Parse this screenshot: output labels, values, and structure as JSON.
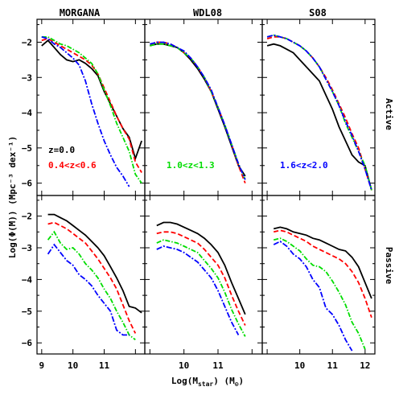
{
  "chart_data": {
    "type": "line",
    "columns": [
      "MORGANA",
      "WDL08",
      "S08"
    ],
    "rows": [
      "Active",
      "Passive"
    ],
    "xlabel": "Log(M",
    "xlabel_sub": "star",
    "xlabel_unit": ") (M",
    "xlabel_unit_sub": "⊙",
    "xlabel_close": ")",
    "ylabel": "Log(Φ(M)) (Mpc⁻³ dex⁻¹)",
    "xlim": [
      8.85,
      12.3
    ],
    "ylim": [
      -6.35,
      -1.35
    ],
    "xticks": [
      9,
      10,
      11,
      12
    ],
    "yticks": [
      -2,
      -3,
      -4,
      -5,
      -6
    ],
    "legend": [
      {
        "text": "z=0.0",
        "color": "#000000",
        "panel": 0
      },
      {
        "text": "0.4<z<0.6",
        "color": "#ff0000",
        "panel": 0
      },
      {
        "text": "1.0<z<1.3",
        "color": "#00dd00",
        "panel": 1
      },
      {
        "text": "1.6<z<2.0",
        "color": "#0000ff",
        "panel": 2
      }
    ],
    "series_styles": [
      {
        "key": "z0",
        "color": "#000000",
        "dash": ""
      },
      {
        "key": "z05",
        "color": "#ff0000",
        "dash": "6,3"
      },
      {
        "key": "z12",
        "color": "#00dd00",
        "dash": "6,2,1.5,2"
      },
      {
        "key": "z18",
        "color": "#0000ff",
        "dash": "7,2,2,2"
      }
    ],
    "panels": [
      {
        "col": 0,
        "row": 0,
        "series": {
          "z0": {
            "x": [
              9.0,
              9.2,
              9.4,
              9.6,
              9.8,
              10.0,
              10.2,
              10.4,
              10.6,
              10.8,
              11.0,
              11.2,
              11.4,
              11.6,
              11.8,
              12.0,
              12.2
            ],
            "y": [
              -2.1,
              -1.95,
              -2.15,
              -2.35,
              -2.5,
              -2.55,
              -2.5,
              -2.6,
              -2.75,
              -2.95,
              -3.4,
              -3.75,
              -4.1,
              -4.45,
              -4.7,
              -5.3,
              -4.8
            ]
          },
          "z05": {
            "x": [
              9.0,
              9.2,
              9.4,
              9.6,
              9.8,
              10.0,
              10.2,
              10.4,
              10.6,
              10.8,
              11.0,
              11.2,
              11.4,
              11.6,
              11.8,
              12.0,
              12.2
            ],
            "y": [
              -1.95,
              -1.9,
              -2.0,
              -2.1,
              -2.2,
              -2.3,
              -2.4,
              -2.5,
              -2.65,
              -2.9,
              -3.3,
              -3.7,
              -4.1,
              -4.45,
              -4.75,
              -5.4,
              -5.7
            ]
          },
          "z12": {
            "x": [
              9.0,
              9.2,
              9.4,
              9.6,
              9.8,
              10.0,
              10.2,
              10.4,
              10.6,
              10.8,
              11.0,
              11.2,
              11.4,
              11.6,
              11.8,
              12.0,
              12.2
            ],
            "y": [
              -1.85,
              -1.85,
              -1.95,
              -2.05,
              -2.1,
              -2.2,
              -2.3,
              -2.45,
              -2.6,
              -2.9,
              -3.35,
              -3.8,
              -4.3,
              -4.7,
              -5.1,
              -5.75,
              -6.0
            ]
          },
          "z18": {
            "x": [
              9.0,
              9.2,
              9.4,
              9.6,
              9.8,
              10.0,
              10.2,
              10.4,
              10.6,
              10.8,
              11.0,
              11.2,
              11.4,
              11.6,
              11.8
            ],
            "y": [
              -1.85,
              -1.9,
              -2.05,
              -2.15,
              -2.3,
              -2.45,
              -2.65,
              -3.1,
              -3.75,
              -4.3,
              -4.8,
              -5.2,
              -5.55,
              -5.8,
              -6.1
            ]
          }
        }
      },
      {
        "col": 1,
        "row": 0,
        "series": {
          "z0": {
            "x": [
              9.0,
              9.2,
              9.4,
              9.6,
              9.8,
              10.0,
              10.2,
              10.4,
              10.6,
              10.8,
              11.0,
              11.2,
              11.4,
              11.6,
              11.8
            ],
            "y": [
              -2.1,
              -2.05,
              -2.05,
              -2.1,
              -2.15,
              -2.3,
              -2.5,
              -2.75,
              -3.05,
              -3.4,
              -3.9,
              -4.4,
              -4.95,
              -5.5,
              -5.8
            ]
          },
          "z05": {
            "x": [
              9.0,
              9.2,
              9.4,
              9.6,
              9.8,
              10.0,
              10.2,
              10.4,
              10.6,
              10.8,
              11.0,
              11.2,
              11.4,
              11.6,
              11.8
            ],
            "y": [
              -2.1,
              -2.0,
              -2.0,
              -2.05,
              -2.15,
              -2.3,
              -2.45,
              -2.7,
              -3.0,
              -3.4,
              -3.85,
              -4.35,
              -4.9,
              -5.5,
              -6.0
            ]
          },
          "z12": {
            "x": [
              9.0,
              9.2,
              9.4,
              9.6,
              9.8,
              10.0,
              10.2,
              10.4,
              10.6,
              10.8,
              11.0,
              11.2,
              11.4,
              11.6,
              11.8
            ],
            "y": [
              -2.1,
              -2.05,
              -2.05,
              -2.1,
              -2.15,
              -2.3,
              -2.45,
              -2.7,
              -3.0,
              -3.4,
              -3.85,
              -4.35,
              -4.9,
              -5.45,
              -5.9
            ]
          },
          "z18": {
            "x": [
              9.0,
              9.2,
              9.4,
              9.6,
              9.8,
              10.0,
              10.2,
              10.4,
              10.6,
              10.8,
              11.0,
              11.2,
              11.4,
              11.6,
              11.8
            ],
            "y": [
              -2.05,
              -2.0,
              -2.0,
              -2.05,
              -2.15,
              -2.25,
              -2.45,
              -2.7,
              -3.0,
              -3.35,
              -3.85,
              -4.35,
              -4.9,
              -5.45,
              -5.9
            ]
          }
        }
      },
      {
        "col": 2,
        "row": 0,
        "series": {
          "z0": {
            "x": [
              9.0,
              9.2,
              9.4,
              9.6,
              9.8,
              10.0,
              10.2,
              10.4,
              10.6,
              10.8,
              11.0,
              11.2,
              11.4,
              11.6,
              11.8,
              12.0,
              12.2
            ],
            "y": [
              -2.1,
              -2.05,
              -2.1,
              -2.2,
              -2.3,
              -2.5,
              -2.7,
              -2.9,
              -3.1,
              -3.5,
              -3.9,
              -4.4,
              -4.8,
              -5.2,
              -5.4,
              -5.5,
              -6.2
            ]
          },
          "z05": {
            "x": [
              9.0,
              9.2,
              9.4,
              9.6,
              9.8,
              10.0,
              10.2,
              10.4,
              10.6,
              10.8,
              11.0,
              11.2,
              11.4,
              11.6,
              11.8,
              12.0,
              12.2
            ],
            "y": [
              -1.9,
              -1.85,
              -1.85,
              -1.9,
              -2.0,
              -2.1,
              -2.25,
              -2.45,
              -2.7,
              -3.0,
              -3.35,
              -3.75,
              -4.15,
              -4.6,
              -5.0,
              -5.6,
              -6.2
            ]
          },
          "z12": {
            "x": [
              9.0,
              9.2,
              9.4,
              9.6,
              9.8,
              10.0,
              10.2,
              10.4,
              10.6,
              10.8,
              11.0,
              11.2,
              11.4,
              11.6,
              11.8,
              12.0,
              12.2
            ],
            "y": [
              -1.85,
              -1.8,
              -1.85,
              -1.9,
              -2.0,
              -2.1,
              -2.25,
              -2.45,
              -2.7,
              -3.05,
              -3.4,
              -3.8,
              -4.3,
              -4.7,
              -5.1,
              -5.5,
              -6.2
            ]
          },
          "z18": {
            "x": [
              9.0,
              9.2,
              9.4,
              9.6,
              9.8,
              10.0,
              10.2,
              10.4,
              10.6,
              10.8,
              11.0,
              11.2,
              11.4,
              11.6,
              11.8,
              12.0,
              12.2
            ],
            "y": [
              -1.85,
              -1.8,
              -1.85,
              -1.9,
              -2.0,
              -2.1,
              -2.25,
              -2.45,
              -2.7,
              -3.05,
              -3.4,
              -3.8,
              -4.25,
              -4.65,
              -5.1,
              -5.6,
              -6.2
            ]
          }
        }
      },
      {
        "col": 0,
        "row": 1,
        "series": {
          "z0": {
            "x": [
              9.2,
              9.4,
              9.6,
              9.8,
              10.0,
              10.2,
              10.4,
              10.6,
              10.8,
              11.0,
              11.2,
              11.4,
              11.6,
              11.8,
              12.0,
              12.2
            ],
            "y": [
              -1.95,
              -1.95,
              -2.05,
              -2.15,
              -2.3,
              -2.45,
              -2.6,
              -2.8,
              -3.0,
              -3.25,
              -3.6,
              -3.95,
              -4.35,
              -4.85,
              -4.9,
              -5.05
            ]
          },
          "z05": {
            "x": [
              9.2,
              9.4,
              9.6,
              9.8,
              10.0,
              10.2,
              10.4,
              10.6,
              10.8,
              11.0,
              11.2,
              11.4,
              11.6,
              11.8,
              12.0
            ],
            "y": [
              -2.25,
              -2.2,
              -2.3,
              -2.4,
              -2.55,
              -2.7,
              -2.85,
              -3.1,
              -3.35,
              -3.65,
              -3.95,
              -4.3,
              -4.8,
              -5.3,
              -5.7
            ]
          },
          "z12": {
            "x": [
              9.2,
              9.4,
              9.6,
              9.8,
              10.0,
              10.2,
              10.4,
              10.6,
              10.8,
              11.0,
              11.2,
              11.4,
              11.6,
              11.8,
              12.0
            ],
            "y": [
              -2.75,
              -2.5,
              -2.85,
              -3.05,
              -3.0,
              -3.2,
              -3.5,
              -3.7,
              -3.95,
              -4.3,
              -4.6,
              -5.0,
              -5.35,
              -5.75,
              -5.9
            ]
          },
          "z18": {
            "x": [
              9.2,
              9.4,
              9.6,
              9.8,
              10.0,
              10.2,
              10.4,
              10.6,
              10.8,
              11.0,
              11.2,
              11.4,
              11.6,
              11.8
            ],
            "y": [
              -3.2,
              -2.9,
              -3.15,
              -3.4,
              -3.55,
              -3.85,
              -4.0,
              -4.2,
              -4.5,
              -4.75,
              -5.0,
              -5.6,
              -5.75,
              -5.75
            ]
          }
        }
      },
      {
        "col": 1,
        "row": 1,
        "series": {
          "z0": {
            "x": [
              9.2,
              9.4,
              9.6,
              9.8,
              10.0,
              10.2,
              10.4,
              10.6,
              10.8,
              11.0,
              11.2,
              11.4,
              11.6,
              11.8
            ],
            "y": [
              -2.3,
              -2.2,
              -2.2,
              -2.25,
              -2.35,
              -2.45,
              -2.55,
              -2.7,
              -2.9,
              -3.15,
              -3.55,
              -4.1,
              -4.6,
              -5.1
            ]
          },
          "z05": {
            "x": [
              9.2,
              9.4,
              9.6,
              9.8,
              10.0,
              10.2,
              10.4,
              10.6,
              10.8,
              11.0,
              11.2,
              11.4,
              11.6,
              11.8
            ],
            "y": [
              -2.55,
              -2.5,
              -2.5,
              -2.55,
              -2.65,
              -2.75,
              -2.85,
              -3.05,
              -3.3,
              -3.55,
              -3.95,
              -4.5,
              -5.0,
              -5.45
            ]
          },
          "z12": {
            "x": [
              9.2,
              9.4,
              9.6,
              9.8,
              10.0,
              10.2,
              10.4,
              10.6,
              10.8,
              11.0,
              11.2,
              11.4,
              11.6,
              11.8
            ],
            "y": [
              -2.85,
              -2.75,
              -2.8,
              -2.85,
              -2.95,
              -3.05,
              -3.15,
              -3.4,
              -3.65,
              -3.95,
              -4.4,
              -4.95,
              -5.4,
              -5.8
            ]
          },
          "z18": {
            "x": [
              9.2,
              9.4,
              9.6,
              9.8,
              10.0,
              10.2,
              10.4,
              10.6,
              10.8,
              11.0,
              11.2,
              11.4,
              11.6
            ],
            "y": [
              -3.05,
              -2.95,
              -3.0,
              -3.05,
              -3.15,
              -3.3,
              -3.45,
              -3.7,
              -3.95,
              -4.35,
              -4.85,
              -5.35,
              -5.75
            ]
          }
        }
      },
      {
        "col": 2,
        "row": 1,
        "series": {
          "z0": {
            "x": [
              9.2,
              9.4,
              9.6,
              9.8,
              10.0,
              10.2,
              10.4,
              10.6,
              10.8,
              11.0,
              11.2,
              11.4,
              11.6,
              11.8,
              12.0,
              12.2
            ],
            "y": [
              -2.4,
              -2.35,
              -2.4,
              -2.5,
              -2.55,
              -2.6,
              -2.7,
              -2.75,
              -2.85,
              -2.95,
              -3.05,
              -3.1,
              -3.3,
              -3.6,
              -4.1,
              -4.6
            ]
          },
          "z05": {
            "x": [
              9.2,
              9.4,
              9.6,
              9.8,
              10.0,
              10.2,
              10.4,
              10.6,
              10.8,
              11.0,
              11.2,
              11.4,
              11.6,
              11.8,
              12.0,
              12.2
            ],
            "y": [
              -2.5,
              -2.45,
              -2.5,
              -2.6,
              -2.7,
              -2.8,
              -2.95,
              -3.05,
              -3.15,
              -3.25,
              -3.35,
              -3.5,
              -3.75,
              -4.1,
              -4.6,
              -5.2
            ]
          },
          "z12": {
            "x": [
              9.2,
              9.4,
              9.6,
              9.8,
              10.0,
              10.2,
              10.4,
              10.6,
              10.8,
              11.0,
              11.2,
              11.4,
              11.6,
              11.8,
              12.0
            ],
            "y": [
              -2.75,
              -2.7,
              -2.8,
              -2.95,
              -3.1,
              -3.35,
              -3.55,
              -3.6,
              -3.75,
              -4.05,
              -4.4,
              -4.8,
              -5.35,
              -5.7,
              -6.2
            ]
          },
          "z18": {
            "x": [
              9.2,
              9.4,
              9.6,
              9.8,
              10.0,
              10.2,
              10.4,
              10.6,
              10.8,
              11.0,
              11.2,
              11.4,
              11.6
            ],
            "y": [
              -2.9,
              -2.8,
              -2.95,
              -3.2,
              -3.35,
              -3.6,
              -4.0,
              -4.25,
              -4.9,
              -5.1,
              -5.45,
              -5.9,
              -6.25
            ]
          }
        }
      }
    ]
  }
}
